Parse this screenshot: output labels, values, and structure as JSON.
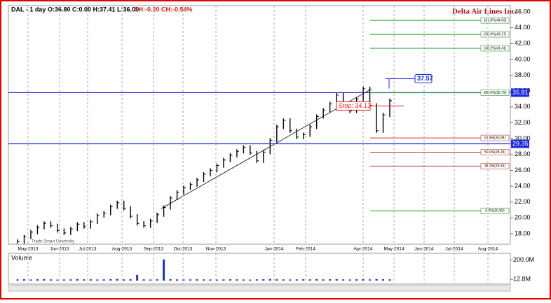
{
  "chart_data": {
    "type": "bar",
    "symbol": "DAL - 1 day",
    "quote": "O:36.80 C:0.00 H:37.41 L:36.00",
    "change": "CH:-0.20 CH:-0.54%",
    "title": "Delta Air Lines Inc.",
    "watermark": "Trade Smart University",
    "xticks": [
      "May-2013",
      "Jun-2013",
      "Jul-2013",
      "Aug-2013",
      "Sep-2013",
      "Oct-2013",
      "Nov-2013",
      "Jan-2014",
      "Feb-2014",
      "Apr-2014",
      "May-2014",
      "Jun-2014",
      "Jul-2014",
      "Aug-2014"
    ],
    "ylim": [
      16.67,
      46.8
    ],
    "yticks": [
      {
        "value": 18,
        "label": "18.00"
      },
      {
        "value": 20,
        "label": "20.00"
      },
      {
        "value": 22,
        "label": "22.00"
      },
      {
        "value": 24,
        "label": "24.00"
      },
      {
        "value": 26,
        "label": "26.00"
      },
      {
        "value": 28,
        "label": "28.00"
      },
      {
        "value": 30,
        "label": "30.00"
      },
      {
        "value": 32,
        "label": "32.00"
      },
      {
        "value": 34,
        "label": "34.00"
      },
      {
        "value": 36,
        "label": "36.00"
      },
      {
        "value": 38,
        "label": "38.00"
      },
      {
        "value": 40,
        "label": "40.00"
      },
      {
        "value": 42,
        "label": "42.00"
      },
      {
        "value": 44,
        "label": "44.00"
      },
      {
        "value": 46,
        "label": "46.00"
      }
    ],
    "series": [
      {
        "name": "DAL",
        "color": "#000000",
        "values": [
          17.0,
          17.6,
          18.2,
          18.8,
          19.3,
          19.0,
          18.4,
          18.1,
          18.6,
          19.2,
          18.9,
          19.5,
          20.3,
          20.6,
          21.4,
          21.9,
          21.2,
          20.2,
          19.3,
          19.0,
          19.6,
          20.4,
          21.3,
          22.5,
          23.2,
          23.8,
          24.2,
          24.8,
          25.5,
          26.0,
          26.6,
          27.3,
          27.9,
          28.4,
          28.9,
          28.2,
          27.2,
          28.3,
          29.8,
          31.5,
          32.3,
          31.0,
          30.2,
          30.5,
          31.5,
          32.8,
          33.6,
          34.4,
          35.5,
          34.3,
          33.5,
          35.0,
          36.3,
          34.2,
          31.0,
          33.0,
          34.8
        ]
      }
    ],
    "lines": [
      {
        "value": 35.81,
        "color": "#1a2ad8"
      },
      {
        "value": 29.35,
        "color": "#1a2ad8"
      }
    ],
    "fib_levels": [
      {
        "label": "161.8%(44.93)",
        "value": 44.93,
        "color": "#2a9a2a"
      },
      {
        "label": "150.0%(43.17)",
        "value": 43.17,
        "color": "#2a9a2a"
      },
      {
        "label": "138.2%(41.41)",
        "value": 41.41,
        "color": "#2a9a2a"
      },
      {
        "label": "100.0%(35.79)",
        "value": 35.79,
        "color": "#2a9a2a"
      },
      {
        "label": "61.8%(30.09)",
        "value": 30.09,
        "color": "#d03030"
      },
      {
        "label": "50.0%(28.29)",
        "value": 28.29,
        "color": "#d03030"
      },
      {
        "label": "38.2%(26.53)",
        "value": 26.53,
        "color": "#d03030"
      },
      {
        "label": "0.0%(20.89)",
        "value": 20.89,
        "color": "#2a9a2a"
      }
    ],
    "stop": {
      "label": "Stop: 34.13",
      "value": 34.13,
      "color": "#e02020"
    },
    "target": {
      "label": "37.57",
      "value": 37.57,
      "color": "#1a2ad8"
    },
    "volume": {
      "label": "Volume",
      "color": "#2233aa",
      "ylim": [
        0,
        264
      ],
      "yticks": [
        {
          "value": 200,
          "label": "200.0M"
        },
        {
          "value": 12.8,
          "label": "12.8M"
        }
      ],
      "values": [
        12,
        14,
        11,
        13,
        15,
        12,
        10,
        11,
        12,
        14,
        12,
        13,
        11,
        12,
        14,
        16,
        12,
        13,
        55,
        12,
        11,
        13,
        205,
        14,
        12,
        11,
        12,
        13,
        12,
        11,
        10,
        12,
        13,
        12,
        11,
        10,
        12,
        14,
        15,
        13,
        12,
        11,
        12,
        13,
        12,
        14,
        12,
        13,
        15,
        12,
        11,
        13,
        14,
        12,
        16,
        13,
        12
      ]
    }
  }
}
